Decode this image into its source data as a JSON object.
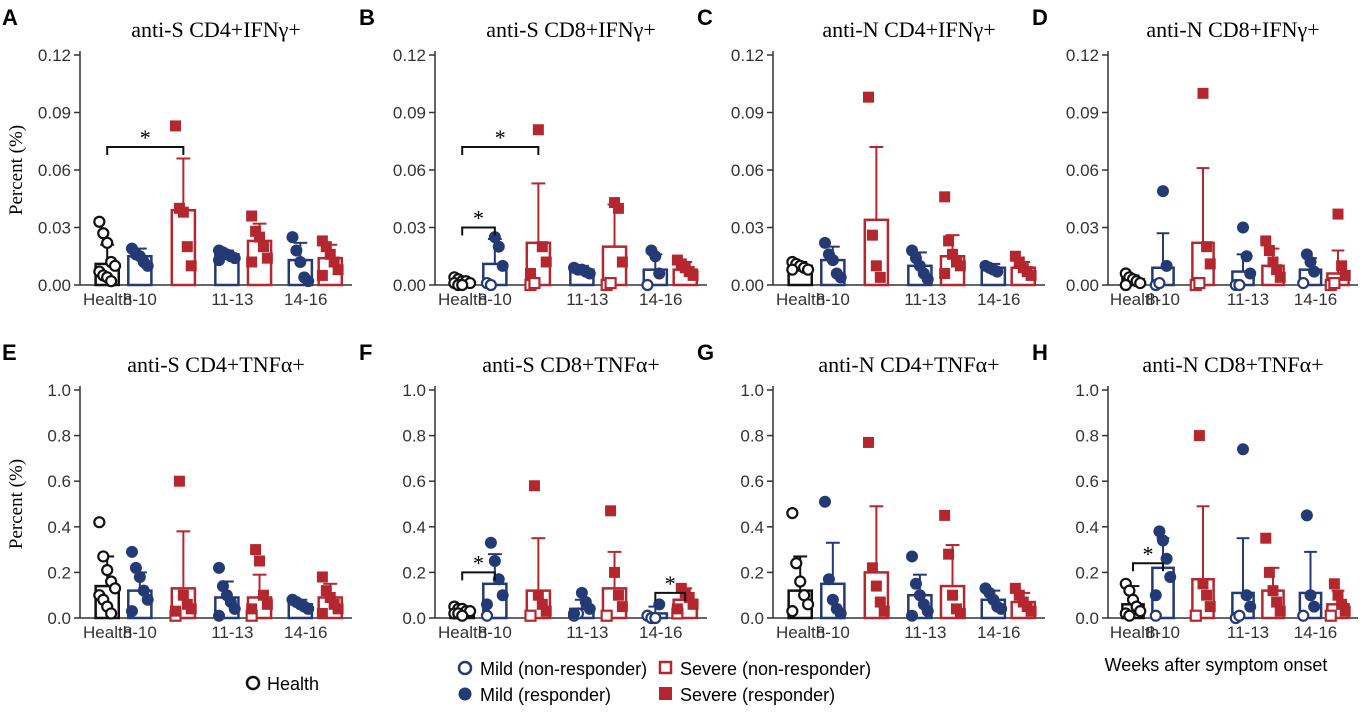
{
  "colors": {
    "health": "#111111",
    "mild": "#243a75",
    "severe": "#b5272f"
  },
  "y_axis_label": "Percent (%)",
  "x_axis_label": "Weeks after symptom onset",
  "legend": {
    "health": "Health",
    "mild_non": "Mild (non-responder)",
    "mild_resp": "Mild (responder)",
    "severe_non": "Severe (non-responder)",
    "severe_resp": "Severe (responder)"
  },
  "x_tick_labels": [
    "Health",
    "8-10",
    "11-13",
    "14-16"
  ],
  "chart_data": [
    {
      "type": "bar",
      "letter": "A",
      "title": "anti-S CD4+IFNγ+",
      "ylim": [
        0,
        0.12
      ],
      "yticks": [
        "0.00",
        "0.03",
        "0.06",
        "0.09",
        "0.12"
      ],
      "groups": [
        {
          "name": "Health",
          "color": "health",
          "mean": 0.011,
          "sd": 0.01,
          "hollow": [
            0.033,
            0.027,
            0.022,
            0.012,
            0.01,
            0.007,
            0.005,
            0.004,
            0.002
          ],
          "filled": []
        },
        {
          "name": "Mild 8-10",
          "color": "mild",
          "mean": 0.015,
          "sd": 0.004,
          "hollow": [],
          "filled": [
            0.019,
            0.016,
            0.015,
            0.012,
            0.01
          ]
        },
        {
          "name": "Severe 8-10",
          "color": "severe",
          "mean": 0.039,
          "sd": 0.027,
          "hollow": [],
          "filled": [
            0.083,
            0.04,
            0.038,
            0.02,
            0.01
          ]
        },
        {
          "name": "Mild 11-13",
          "color": "mild",
          "mean": 0.016,
          "sd": 0.002,
          "hollow": [],
          "filled": [
            0.018,
            0.017,
            0.016,
            0.015,
            0.014,
            0.013
          ]
        },
        {
          "name": "Severe 11-13",
          "color": "severe",
          "mean": 0.023,
          "sd": 0.009,
          "hollow": [],
          "filled": [
            0.036,
            0.028,
            0.025,
            0.02,
            0.014,
            0.012
          ]
        },
        {
          "name": "Mild 14-16",
          "color": "mild",
          "mean": 0.013,
          "sd": 0.009,
          "hollow": [],
          "filled": [
            0.025,
            0.018,
            0.012,
            0.004,
            0.002
          ]
        },
        {
          "name": "Severe 14-16",
          "color": "severe",
          "mean": 0.014,
          "sd": 0.007,
          "hollow": [],
          "filled": [
            0.023,
            0.02,
            0.016,
            0.012,
            0.008,
            0.005
          ]
        }
      ],
      "sig": [
        {
          "from": 0,
          "to": 2,
          "y": 0.072,
          "label": "*"
        }
      ]
    },
    {
      "type": "bar",
      "letter": "B",
      "title": "anti-S CD8+IFNγ+",
      "ylim": [
        0,
        0.12
      ],
      "yticks": [
        "0.00",
        "0.03",
        "0.06",
        "0.09",
        "0.12"
      ],
      "groups": [
        {
          "name": "Health",
          "color": "health",
          "mean": 0.002,
          "sd": 0.002,
          "hollow": [
            0.004,
            0.003,
            0.002,
            0.002,
            0.001,
            0.001,
            0.0,
            0.0
          ],
          "filled": []
        },
        {
          "name": "Mild 8-10",
          "color": "mild",
          "mean": 0.011,
          "sd": 0.013,
          "hollow": [
            0.001,
            0.0
          ],
          "filled": [
            0.025,
            0.02,
            0.01
          ]
        },
        {
          "name": "Severe 8-10",
          "color": "severe",
          "mean": 0.022,
          "sd": 0.031,
          "hollow": [
            0.0,
            0.001
          ],
          "filled": [
            0.081,
            0.02,
            0.012,
            0.006
          ]
        },
        {
          "name": "Mild 11-13",
          "color": "mild",
          "mean": 0.008,
          "sd": 0.002,
          "hollow": [],
          "filled": [
            0.009,
            0.008,
            0.008,
            0.007,
            0.006
          ]
        },
        {
          "name": "Severe 11-13",
          "color": "severe",
          "mean": 0.02,
          "sd": 0.022,
          "hollow": [
            0.0,
            0.001
          ],
          "filled": [
            0.043,
            0.04,
            0.012
          ]
        },
        {
          "name": "Mild 14-16",
          "color": "mild",
          "mean": 0.008,
          "sd": 0.008,
          "hollow": [
            0.0
          ],
          "filled": [
            0.018,
            0.015,
            0.006
          ]
        },
        {
          "name": "Severe 14-16",
          "color": "severe",
          "mean": 0.008,
          "sd": 0.004,
          "hollow": [],
          "filled": [
            0.013,
            0.011,
            0.009,
            0.007,
            0.005
          ]
        }
      ],
      "sig": [
        {
          "from": 0,
          "to": 1,
          "y": 0.03,
          "label": "*"
        },
        {
          "from": 0,
          "to": 2,
          "y": 0.072,
          "label": "*"
        }
      ]
    },
    {
      "type": "bar",
      "letter": "C",
      "title": "anti-N CD4+IFNγ+",
      "ylim": [
        0,
        0.12
      ],
      "yticks": [
        "0.00",
        "0.03",
        "0.06",
        "0.09",
        "0.12"
      ],
      "groups": [
        {
          "name": "Health",
          "color": "health",
          "mean": 0.01,
          "sd": 0.002,
          "hollow": [
            0.012,
            0.011,
            0.01,
            0.009,
            0.008,
            0.008
          ],
          "filled": []
        },
        {
          "name": "Mild 8-10",
          "color": "mild",
          "mean": 0.013,
          "sd": 0.007,
          "hollow": [],
          "filled": [
            0.022,
            0.016,
            0.013,
            0.006,
            0.004
          ]
        },
        {
          "name": "Severe 8-10",
          "color": "severe",
          "mean": 0.034,
          "sd": 0.038,
          "hollow": [],
          "filled": [
            0.098,
            0.026,
            0.01,
            0.004
          ]
        },
        {
          "name": "Mild 11-13",
          "color": "mild",
          "mean": 0.01,
          "sd": 0.007,
          "hollow": [],
          "filled": [
            0.018,
            0.014,
            0.01,
            0.006,
            0.003
          ]
        },
        {
          "name": "Severe 11-13",
          "color": "severe",
          "mean": 0.015,
          "sd": 0.011,
          "hollow": [],
          "filled": [
            0.046,
            0.023,
            0.016,
            0.012,
            0.01,
            0.006
          ]
        },
        {
          "name": "Mild 14-16",
          "color": "mild",
          "mean": 0.009,
          "sd": 0.002,
          "hollow": [],
          "filled": [
            0.01,
            0.009,
            0.008,
            0.007
          ]
        },
        {
          "name": "Severe 14-16",
          "color": "severe",
          "mean": 0.009,
          "sd": 0.003,
          "hollow": [],
          "filled": [
            0.015,
            0.012,
            0.009,
            0.007,
            0.005
          ]
        }
      ],
      "sig": []
    },
    {
      "type": "bar",
      "letter": "D",
      "title": "anti-N  CD8+IFNγ+",
      "ylim": [
        0,
        0.12
      ],
      "yticks": [
        "0.00",
        "0.03",
        "0.06",
        "0.09",
        "0.12"
      ],
      "groups": [
        {
          "name": "Health",
          "color": "health",
          "mean": 0.003,
          "sd": 0.002,
          "hollow": [
            0.006,
            0.004,
            0.003,
            0.002,
            0.001,
            0.0
          ],
          "filled": []
        },
        {
          "name": "Mild 8-10",
          "color": "mild",
          "mean": 0.009,
          "sd": 0.018,
          "hollow": [
            0.0,
            0.001
          ],
          "filled": [
            0.049,
            0.01
          ]
        },
        {
          "name": "Severe 8-10",
          "color": "severe",
          "mean": 0.022,
          "sd": 0.039,
          "hollow": [
            0.0,
            0.001
          ],
          "filled": [
            0.1,
            0.02,
            0.011
          ]
        },
        {
          "name": "Mild 11-13",
          "color": "mild",
          "mean": 0.007,
          "sd": 0.009,
          "hollow": [
            0.0,
            0.0
          ],
          "filled": [
            0.03,
            0.015,
            0.006
          ]
        },
        {
          "name": "Severe 11-13",
          "color": "severe",
          "mean": 0.01,
          "sd": 0.009,
          "hollow": [],
          "filled": [
            0.023,
            0.018,
            0.012,
            0.008,
            0.004
          ]
        },
        {
          "name": "Mild 14-16",
          "color": "mild",
          "mean": 0.008,
          "sd": 0.006,
          "hollow": [
            0.001
          ],
          "filled": [
            0.016,
            0.012,
            0.007
          ]
        },
        {
          "name": "Severe 14-16",
          "color": "severe",
          "mean": 0.006,
          "sd": 0.012,
          "hollow": [
            0.0,
            0.001
          ],
          "filled": [
            0.037,
            0.01,
            0.005
          ]
        }
      ],
      "sig": []
    },
    {
      "type": "bar",
      "letter": "E",
      "title": "anti-S CD4+TNFα+",
      "ylim": [
        0,
        1.0
      ],
      "yticks": [
        "0.0",
        "0.2",
        "0.4",
        "0.6",
        "0.8",
        "1.0"
      ],
      "groups": [
        {
          "name": "Health",
          "color": "health",
          "mean": 0.14,
          "sd": 0.13,
          "hollow": [
            0.42,
            0.27,
            0.21,
            0.16,
            0.13,
            0.1,
            0.08,
            0.05,
            0.02
          ],
          "filled": []
        },
        {
          "name": "Mild 8-10",
          "color": "mild",
          "mean": 0.12,
          "sd": 0.08,
          "hollow": [],
          "filled": [
            0.29,
            0.22,
            0.18,
            0.12,
            0.08,
            0.03
          ]
        },
        {
          "name": "Severe 8-10",
          "color": "severe",
          "mean": 0.13,
          "sd": 0.25,
          "hollow": [
            0.01
          ],
          "filled": [
            0.6,
            0.1,
            0.06,
            0.04,
            0.03
          ]
        },
        {
          "name": "Mild 11-13",
          "color": "mild",
          "mean": 0.09,
          "sd": 0.07,
          "hollow": [],
          "filled": [
            0.22,
            0.14,
            0.1,
            0.07,
            0.04,
            0.01
          ]
        },
        {
          "name": "Severe 11-13",
          "color": "severe",
          "mean": 0.09,
          "sd": 0.1,
          "hollow": [
            0.01
          ],
          "filled": [
            0.3,
            0.25,
            0.1,
            0.06,
            0.04
          ]
        },
        {
          "name": "Mild 14-16",
          "color": "mild",
          "mean": 0.06,
          "sd": 0.02,
          "hollow": [],
          "filled": [
            0.08,
            0.07,
            0.06,
            0.05,
            0.04
          ]
        },
        {
          "name": "Severe 14-16",
          "color": "severe",
          "mean": 0.09,
          "sd": 0.06,
          "hollow": [],
          "filled": [
            0.18,
            0.12,
            0.09,
            0.06,
            0.04,
            0.02
          ]
        }
      ],
      "sig": []
    },
    {
      "type": "bar",
      "letter": "F",
      "title": "anti-S CD8+TNFα+",
      "ylim": [
        0,
        1.0
      ],
      "yticks": [
        "0.0",
        "0.2",
        "0.4",
        "0.6",
        "0.8",
        "1.0"
      ],
      "groups": [
        {
          "name": "Health",
          "color": "health",
          "mean": 0.03,
          "sd": 0.02,
          "hollow": [
            0.05,
            0.04,
            0.04,
            0.03,
            0.03,
            0.02,
            0.02,
            0.01
          ],
          "filled": []
        },
        {
          "name": "Mild 8-10",
          "color": "mild",
          "mean": 0.15,
          "sd": 0.13,
          "hollow": [
            0.01
          ],
          "filled": [
            0.33,
            0.25,
            0.17,
            0.1,
            0.06
          ]
        },
        {
          "name": "Severe 8-10",
          "color": "severe",
          "mean": 0.12,
          "sd": 0.23,
          "hollow": [
            0.01
          ],
          "filled": [
            0.58,
            0.1,
            0.06,
            0.03
          ]
        },
        {
          "name": "Mild 11-13",
          "color": "mild",
          "mean": 0.04,
          "sd": 0.04,
          "hollow": [
            0.01,
            0.02
          ],
          "filled": [
            0.11,
            0.07,
            0.04,
            0.02
          ]
        },
        {
          "name": "Severe 11-13",
          "color": "severe",
          "mean": 0.13,
          "sd": 0.16,
          "hollow": [
            0.01
          ],
          "filled": [
            0.47,
            0.2,
            0.1,
            0.05
          ]
        },
        {
          "name": "Mild 14-16",
          "color": "mild",
          "mean": 0.02,
          "sd": 0.03,
          "hollow": [
            0.01,
            0.0,
            0.0
          ],
          "filled": [
            0.06
          ]
        },
        {
          "name": "Severe 14-16",
          "color": "severe",
          "mean": 0.08,
          "sd": 0.05,
          "hollow": [
            0.02
          ],
          "filled": [
            0.13,
            0.11,
            0.09,
            0.06,
            0.04
          ]
        }
      ],
      "sig": [
        {
          "from": 0,
          "to": 1,
          "y": 0.2,
          "label": "*"
        },
        {
          "from": 5,
          "to": 6,
          "y": 0.11,
          "label": "*"
        }
      ]
    },
    {
      "type": "bar",
      "letter": "G",
      "title": "anti-N  CD4+TNFα+",
      "ylim": [
        0,
        1.0
      ],
      "yticks": [
        "0.0",
        "0.2",
        "0.4",
        "0.6",
        "0.8",
        "1.0"
      ],
      "groups": [
        {
          "name": "Health",
          "color": "health",
          "mean": 0.12,
          "sd": 0.15,
          "hollow": [
            0.46,
            0.24,
            0.16,
            0.1,
            0.06,
            0.03
          ],
          "filled": []
        },
        {
          "name": "Mild 8-10",
          "color": "mild",
          "mean": 0.15,
          "sd": 0.18,
          "hollow": [],
          "filled": [
            0.51,
            0.17,
            0.08,
            0.04,
            0.02
          ]
        },
        {
          "name": "Severe 8-10",
          "color": "severe",
          "mean": 0.2,
          "sd": 0.29,
          "hollow": [],
          "filled": [
            0.77,
            0.22,
            0.14,
            0.07,
            0.03
          ]
        },
        {
          "name": "Mild 11-13",
          "color": "mild",
          "mean": 0.1,
          "sd": 0.09,
          "hollow": [],
          "filled": [
            0.27,
            0.15,
            0.1,
            0.06,
            0.03,
            0.01
          ]
        },
        {
          "name": "Severe 11-13",
          "color": "severe",
          "mean": 0.14,
          "sd": 0.18,
          "hollow": [],
          "filled": [
            0.45,
            0.28,
            0.1,
            0.04,
            0.02
          ]
        },
        {
          "name": "Mild 14-16",
          "color": "mild",
          "mean": 0.08,
          "sd": 0.04,
          "hollow": [],
          "filled": [
            0.13,
            0.11,
            0.08,
            0.05,
            0.04
          ]
        },
        {
          "name": "Severe 14-16",
          "color": "severe",
          "mean": 0.07,
          "sd": 0.04,
          "hollow": [],
          "filled": [
            0.13,
            0.1,
            0.07,
            0.05,
            0.03
          ]
        }
      ],
      "sig": []
    },
    {
      "type": "bar",
      "letter": "H",
      "title": "anti-N  CD8+TNFα+",
      "ylim": [
        0,
        1.0
      ],
      "yticks": [
        "0.0",
        "0.2",
        "0.4",
        "0.6",
        "0.8",
        "1.0"
      ],
      "groups": [
        {
          "name": "Health",
          "color": "health",
          "mean": 0.06,
          "sd": 0.08,
          "hollow": [
            0.15,
            0.12,
            0.08,
            0.05,
            0.03,
            0.02,
            0.01
          ],
          "filled": []
        },
        {
          "name": "Mild 8-10",
          "color": "mild",
          "mean": 0.22,
          "sd": 0.13,
          "hollow": [
            0.01
          ],
          "filled": [
            0.38,
            0.34,
            0.26,
            0.18,
            0.1
          ]
        },
        {
          "name": "Severe 8-10",
          "color": "severe",
          "mean": 0.17,
          "sd": 0.32,
          "hollow": [
            0.01
          ],
          "filled": [
            0.8,
            0.15,
            0.1,
            0.05
          ]
        },
        {
          "name": "Mild 11-13",
          "color": "mild",
          "mean": 0.11,
          "sd": 0.24,
          "hollow": [
            0.0,
            0.01
          ],
          "filled": [
            0.74,
            0.1,
            0.05
          ]
        },
        {
          "name": "Severe 11-13",
          "color": "severe",
          "mean": 0.12,
          "sd": 0.1,
          "hollow": [],
          "filled": [
            0.35,
            0.2,
            0.12,
            0.07,
            0.03
          ]
        },
        {
          "name": "Mild 14-16",
          "color": "mild",
          "mean": 0.11,
          "sd": 0.18,
          "hollow": [
            0.01
          ],
          "filled": [
            0.45,
            0.1,
            0.05
          ]
        },
        {
          "name": "Severe 14-16",
          "color": "severe",
          "mean": 0.06,
          "sd": 0.06,
          "hollow": [
            0.01
          ],
          "filled": [
            0.15,
            0.1,
            0.06,
            0.03
          ]
        }
      ],
      "sig": [
        {
          "from": 0,
          "to": 1,
          "y": 0.24,
          "label": "*"
        }
      ]
    }
  ]
}
